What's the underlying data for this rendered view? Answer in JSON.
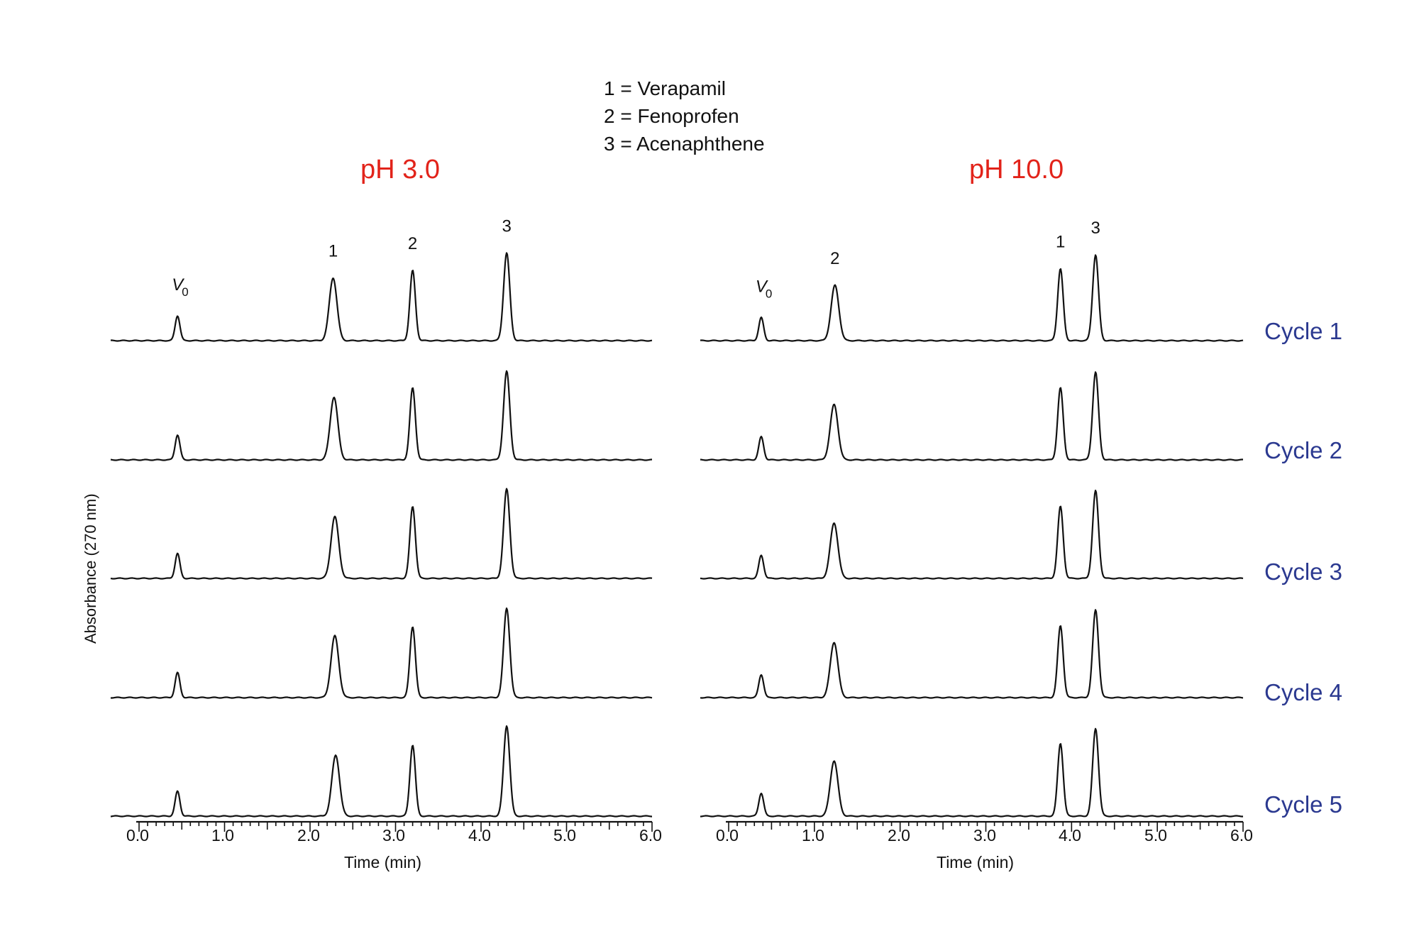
{
  "legend": {
    "items": [
      "1 = Verapamil",
      "2 = Fenoprofen",
      "3 = Acenaphthene"
    ]
  },
  "y_axis_label": "Absorbance (270 nm)",
  "cycles": [
    "Cycle 1",
    "Cycle 2",
    "Cycle 3",
    "Cycle 4",
    "Cycle 5"
  ],
  "colors": {
    "title": "#e2231a",
    "cycle_label": "#2b3990",
    "trace": "#111111"
  },
  "panels": [
    {
      "title": "pH 3.0",
      "xlabel": "Time (min)",
      "xticks": [
        "0.0",
        "1.0",
        "2.0",
        "3.0",
        "4.0",
        "5.0",
        "6.0"
      ]
    },
    {
      "title": "pH 10.0",
      "xlabel": "Time (min)",
      "xticks": [
        "0.0",
        "1.0",
        "2.0",
        "3.0",
        "4.0",
        "5.0",
        "6.0"
      ]
    }
  ],
  "chart_data": [
    {
      "type": "line",
      "title": "pH 3.0",
      "xlabel": "Time (min)",
      "ylabel": "Absorbance (270 nm)",
      "xlim": [
        0.0,
        6.0
      ],
      "xticks": [
        0.0,
        1.0,
        2.0,
        3.0,
        4.0,
        5.0,
        6.0
      ],
      "grid": false,
      "peak_labels": [
        {
          "label": "V0",
          "time": 0.45
        },
        {
          "label": "1",
          "time": 2.27
        },
        {
          "label": "2",
          "time": 3.2
        },
        {
          "label": "3",
          "time": 4.3
        }
      ],
      "series": [
        {
          "name": "Cycle 1",
          "peaks": [
            {
              "time": 0.45,
              "height": 0.27
            },
            {
              "time": 2.27,
              "height": 0.68
            },
            {
              "time": 3.2,
              "height": 0.76
            },
            {
              "time": 4.3,
              "height": 0.95
            }
          ]
        },
        {
          "name": "Cycle 2",
          "peaks": [
            {
              "time": 0.45,
              "height": 0.27
            },
            {
              "time": 2.28,
              "height": 0.68
            },
            {
              "time": 3.2,
              "height": 0.78
            },
            {
              "time": 4.3,
              "height": 0.96
            }
          ]
        },
        {
          "name": "Cycle 3",
          "peaks": [
            {
              "time": 0.45,
              "height": 0.27
            },
            {
              "time": 2.29,
              "height": 0.67
            },
            {
              "time": 3.2,
              "height": 0.78
            },
            {
              "time": 4.3,
              "height": 0.97
            }
          ]
        },
        {
          "name": "Cycle 4",
          "peaks": [
            {
              "time": 0.45,
              "height": 0.27
            },
            {
              "time": 2.29,
              "height": 0.67
            },
            {
              "time": 3.2,
              "height": 0.77
            },
            {
              "time": 4.3,
              "height": 0.97
            }
          ]
        },
        {
          "name": "Cycle 5",
          "peaks": [
            {
              "time": 0.45,
              "height": 0.27
            },
            {
              "time": 2.3,
              "height": 0.66
            },
            {
              "time": 3.2,
              "height": 0.77
            },
            {
              "time": 4.3,
              "height": 0.98
            }
          ]
        }
      ]
    },
    {
      "type": "line",
      "title": "pH 10.0",
      "xlabel": "Time (min)",
      "ylabel": "Absorbance (270 nm)",
      "xlim": [
        0.0,
        6.0
      ],
      "xticks": [
        0.0,
        1.0,
        2.0,
        3.0,
        4.0,
        5.0,
        6.0
      ],
      "grid": false,
      "peak_labels": [
        {
          "label": "V0",
          "time": 0.38
        },
        {
          "label": "2",
          "time": 1.24
        },
        {
          "label": "1",
          "time": 3.87
        },
        {
          "label": "3",
          "time": 4.28
        }
      ],
      "series": [
        {
          "name": "Cycle 1",
          "peaks": [
            {
              "time": 0.38,
              "height": 0.25
            },
            {
              "time": 1.24,
              "height": 0.6
            },
            {
              "time": 3.87,
              "height": 0.78
            },
            {
              "time": 4.28,
              "height": 0.93
            }
          ]
        },
        {
          "name": "Cycle 2",
          "peaks": [
            {
              "time": 0.38,
              "height": 0.25
            },
            {
              "time": 1.23,
              "height": 0.6
            },
            {
              "time": 3.87,
              "height": 0.78
            },
            {
              "time": 4.28,
              "height": 0.95
            }
          ]
        },
        {
          "name": "Cycle 3",
          "peaks": [
            {
              "time": 0.38,
              "height": 0.25
            },
            {
              "time": 1.23,
              "height": 0.6
            },
            {
              "time": 3.87,
              "height": 0.78
            },
            {
              "time": 4.28,
              "height": 0.95
            }
          ]
        },
        {
          "name": "Cycle 4",
          "peaks": [
            {
              "time": 0.38,
              "height": 0.25
            },
            {
              "time": 1.23,
              "height": 0.6
            },
            {
              "time": 3.87,
              "height": 0.78
            },
            {
              "time": 4.28,
              "height": 0.95
            }
          ]
        },
        {
          "name": "Cycle 5",
          "peaks": [
            {
              "time": 0.38,
              "height": 0.25
            },
            {
              "time": 1.23,
              "height": 0.6
            },
            {
              "time": 3.87,
              "height": 0.79
            },
            {
              "time": 4.28,
              "height": 0.95
            }
          ]
        }
      ]
    }
  ]
}
